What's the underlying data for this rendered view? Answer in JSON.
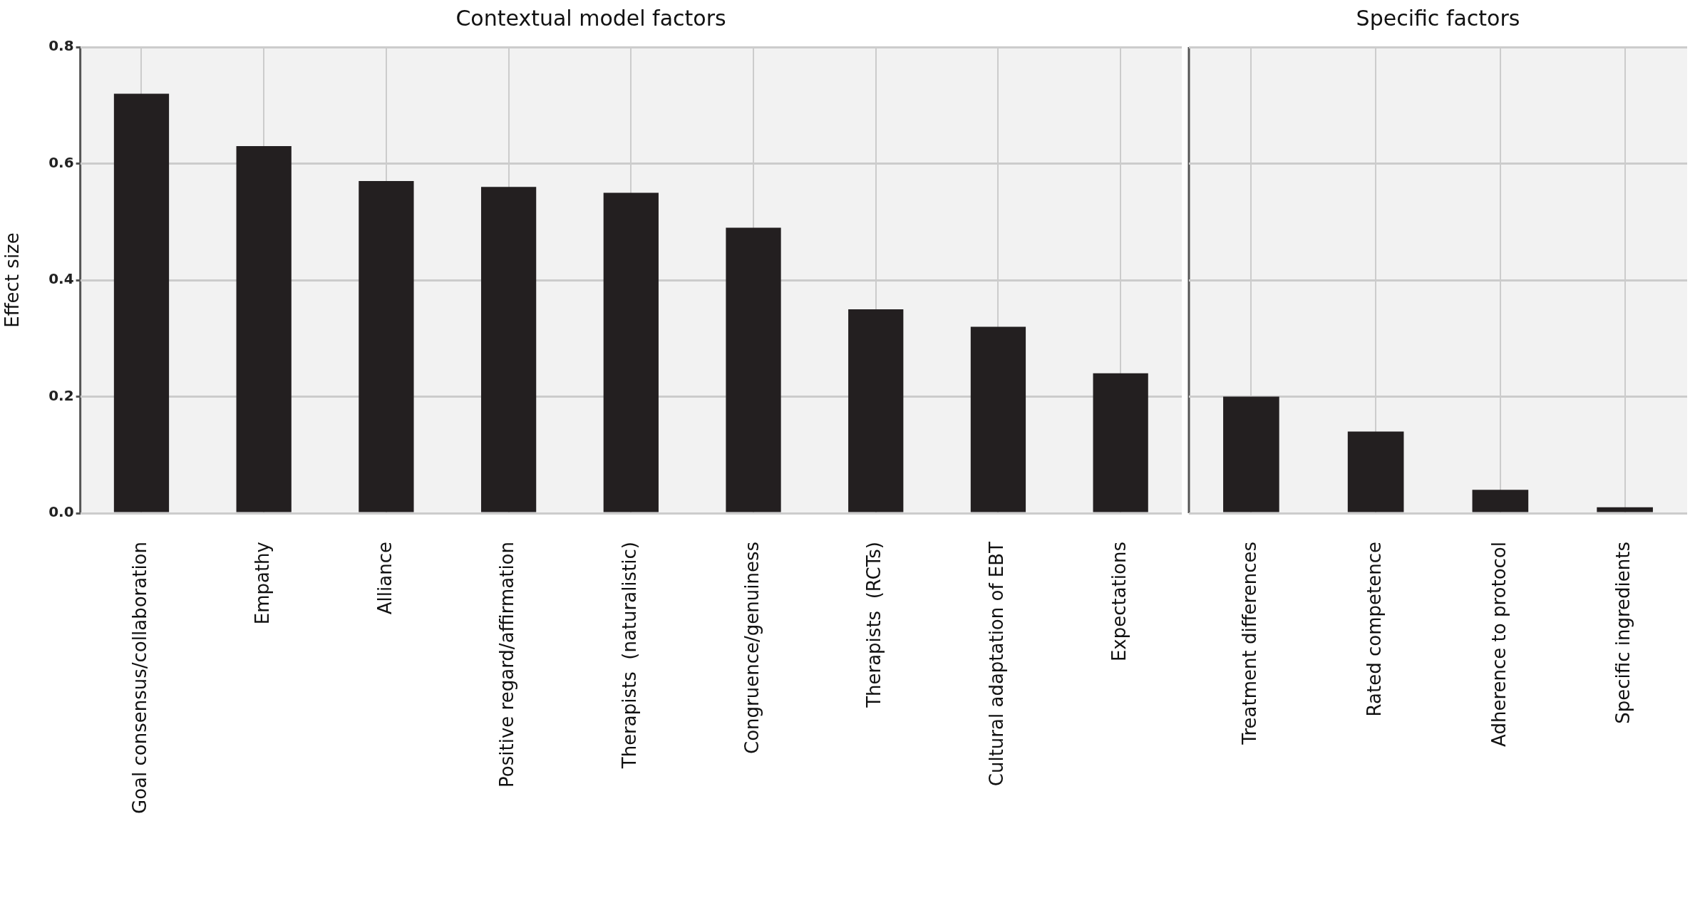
{
  "chart_data": [
    {
      "type": "bar",
      "title": "Contextual model factors",
      "ylabel": "Effect size",
      "categories": [
        "Goal consensus/collaboration",
        "Empathy",
        "Alliance",
        "Positive regard/affirmation",
        "Therapists  (naturalistic)",
        "Congruence/genuiness",
        "Therapists  (RCTs)",
        "Cultural adaptation of EBT",
        "Expectations"
      ],
      "values": [
        0.72,
        0.63,
        0.57,
        0.56,
        0.55,
        0.49,
        0.35,
        0.32,
        0.24
      ],
      "color": "#231f20",
      "ylim": [
        0,
        0.8
      ],
      "yticks": [
        {
          "value": 0,
          "label": "0.0"
        },
        {
          "value": 0.2,
          "label": "0.2"
        },
        {
          "value": 0.4,
          "label": "0.4"
        },
        {
          "value": 0.6,
          "label": "0.6"
        },
        {
          "value": 0.8,
          "label": "0.8"
        }
      ],
      "grid": true,
      "legend": false
    },
    {
      "type": "bar",
      "title": "Specific factors",
      "categories": [
        "Treatment differences",
        "Rated competence",
        "Adherence to protocol",
        "Specific ingredients"
      ],
      "values": [
        0.2,
        0.14,
        0.04,
        0.01
      ],
      "color": "#231f20",
      "ylim": [
        0,
        0.8
      ],
      "yticks": [
        0,
        0.2,
        0.4,
        0.6,
        0.8
      ],
      "grid": true,
      "legend": false,
      "tick_labels": "x"
    }
  ]
}
